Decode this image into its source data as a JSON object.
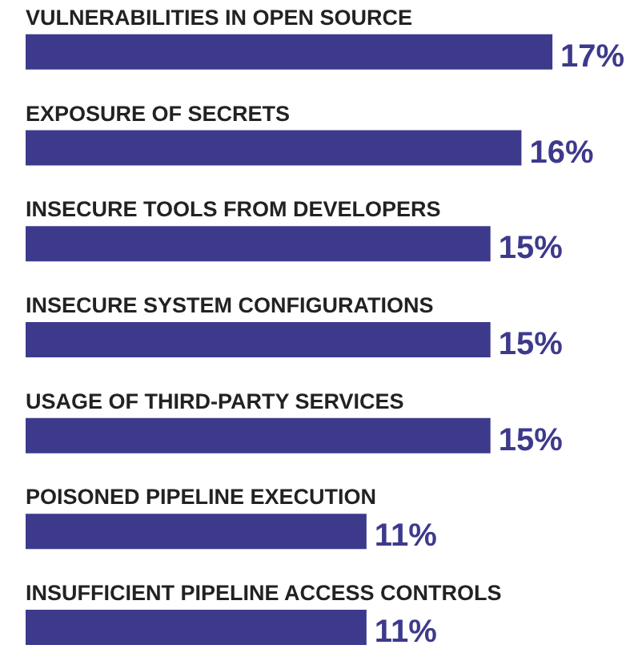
{
  "chart_data": {
    "type": "bar",
    "orientation": "horizontal",
    "value_labels": [
      "17%",
      "16%",
      "15%",
      "15%",
      "15%",
      "11%",
      "11%"
    ],
    "categories": [
      "VULNERABILITIES IN OPEN SOURCE",
      "EXPOSURE OF SECRETS",
      "INSECURE TOOLS FROM DEVELOPERS",
      "INSECURE SYSTEM CONFIGURATIONS",
      "USAGE OF THIRD-PARTY SERVICES",
      "POISONED PIPELINE EXECUTION",
      "INSUFFICIENT PIPELINE ACCESS CONTROLS"
    ],
    "values": [
      17,
      16,
      15,
      15,
      15,
      11,
      11
    ],
    "color": "#3d3a8c"
  }
}
